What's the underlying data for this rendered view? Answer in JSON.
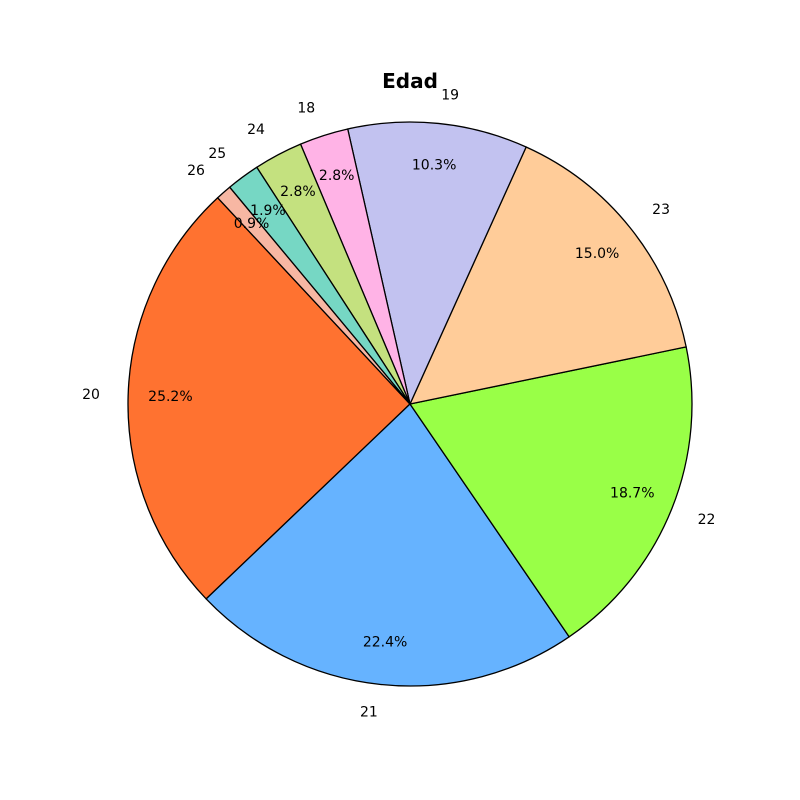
{
  "chart_data": {
    "type": "pie",
    "title": "Edad",
    "start_angle_deg": 133,
    "direction": "counterclockwise",
    "slices": [
      {
        "label": "20",
        "value": 25.2,
        "pct_label": "25.2%",
        "color": "#ff7230"
      },
      {
        "label": "21",
        "value": 22.4,
        "pct_label": "22.4%",
        "color": "#66b3ff"
      },
      {
        "label": "22",
        "value": 18.7,
        "pct_label": "18.7%",
        "color": "#99ff47"
      },
      {
        "label": "23",
        "value": 15.0,
        "pct_label": "15.0%",
        "color": "#ffcc99"
      },
      {
        "label": "19",
        "value": 10.3,
        "pct_label": "10.3%",
        "color": "#c2c2f0"
      },
      {
        "label": "18",
        "value": 2.8,
        "pct_label": "2.8%",
        "color": "#ffb3e6"
      },
      {
        "label": "24",
        "value": 2.8,
        "pct_label": "2.8%",
        "color": "#c4e17f"
      },
      {
        "label": "25",
        "value": 1.9,
        "pct_label": "1.9%",
        "color": "#76d7c4"
      },
      {
        "label": "26",
        "value": 0.9,
        "pct_label": "0.9%",
        "color": "#f7b7a3"
      }
    ]
  }
}
